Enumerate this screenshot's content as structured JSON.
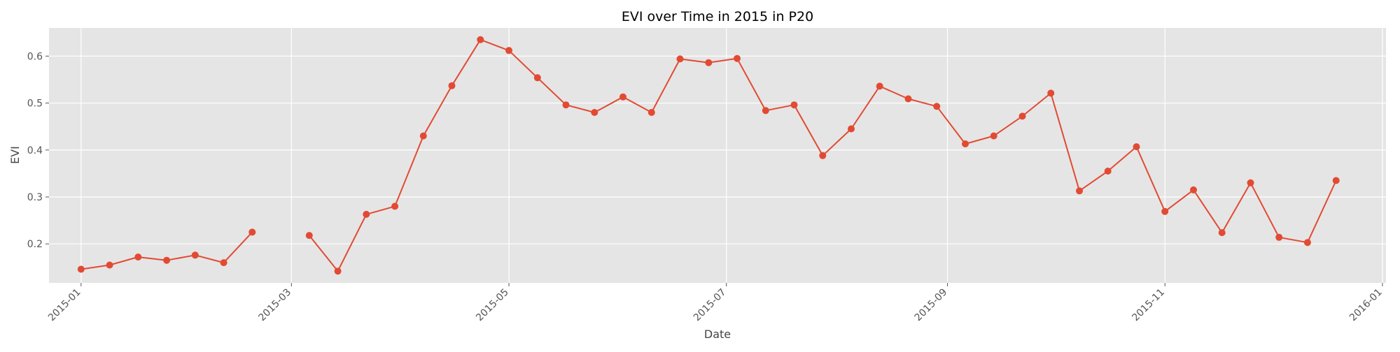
{
  "chart_data": {
    "type": "line",
    "title": "EVI over Time in 2015 in P20",
    "xlabel": "Date",
    "ylabel": "EVI",
    "x_axis_type": "date",
    "xlim": [
      "2014-12-23",
      "2016-01-02"
    ],
    "ylim": [
      0.117,
      0.66
    ],
    "grid": true,
    "x_ticks": [
      {
        "date": "2015-01-01",
        "label": "2015-01"
      },
      {
        "date": "2015-03-01",
        "label": "2015-03"
      },
      {
        "date": "2015-05-01",
        "label": "2015-05"
      },
      {
        "date": "2015-07-01",
        "label": "2015-07"
      },
      {
        "date": "2015-09-01",
        "label": "2015-09"
      },
      {
        "date": "2015-11-01",
        "label": "2015-11"
      },
      {
        "date": "2016-01-01",
        "label": "2016-01"
      }
    ],
    "y_ticks": [
      {
        "value": 0.2,
        "label": "0.2"
      },
      {
        "value": 0.3,
        "label": "0.3"
      },
      {
        "value": 0.4,
        "label": "0.4"
      },
      {
        "value": 0.5,
        "label": "0.5"
      },
      {
        "value": 0.6,
        "label": "0.6"
      }
    ],
    "colors": {
      "line": "#E24A33",
      "plot_background": "#E5E5E5",
      "grid": "#FFFFFF"
    },
    "series": [
      {
        "x": [
          "2015-01-01",
          "2015-01-09",
          "2015-01-17",
          "2015-01-25",
          "2015-02-02",
          "2015-02-10",
          "2015-02-18",
          "2015-02-26",
          "2015-03-06",
          "2015-03-14",
          "2015-03-22",
          "2015-03-30",
          "2015-04-07",
          "2015-04-15",
          "2015-04-23",
          "2015-05-01",
          "2015-05-09",
          "2015-05-17",
          "2015-05-25",
          "2015-06-02",
          "2015-06-10",
          "2015-06-18",
          "2015-06-26",
          "2015-07-04",
          "2015-07-12",
          "2015-07-20",
          "2015-07-28",
          "2015-08-05",
          "2015-08-13",
          "2015-08-21",
          "2015-08-29",
          "2015-09-06",
          "2015-09-14",
          "2015-09-22",
          "2015-09-30",
          "2015-10-08",
          "2015-10-16",
          "2015-10-24",
          "2015-11-01",
          "2015-11-09",
          "2015-11-17",
          "2015-11-25",
          "2015-12-03",
          "2015-12-11",
          "2015-12-19"
        ],
        "y": [
          0.146,
          0.155,
          0.172,
          0.165,
          0.176,
          0.16,
          0.225,
          null,
          0.218,
          0.142,
          0.263,
          0.28,
          0.43,
          0.537,
          0.635,
          0.612,
          0.554,
          0.496,
          0.48,
          0.513,
          0.48,
          0.594,
          0.586,
          0.595,
          0.484,
          0.496,
          0.388,
          0.445,
          0.536,
          0.509,
          0.493,
          0.413,
          0.43,
          0.472,
          0.521,
          0.313,
          0.355,
          0.407,
          0.269,
          0.315,
          0.224,
          0.33,
          0.214,
          0.203,
          0.335
        ]
      }
    ]
  }
}
